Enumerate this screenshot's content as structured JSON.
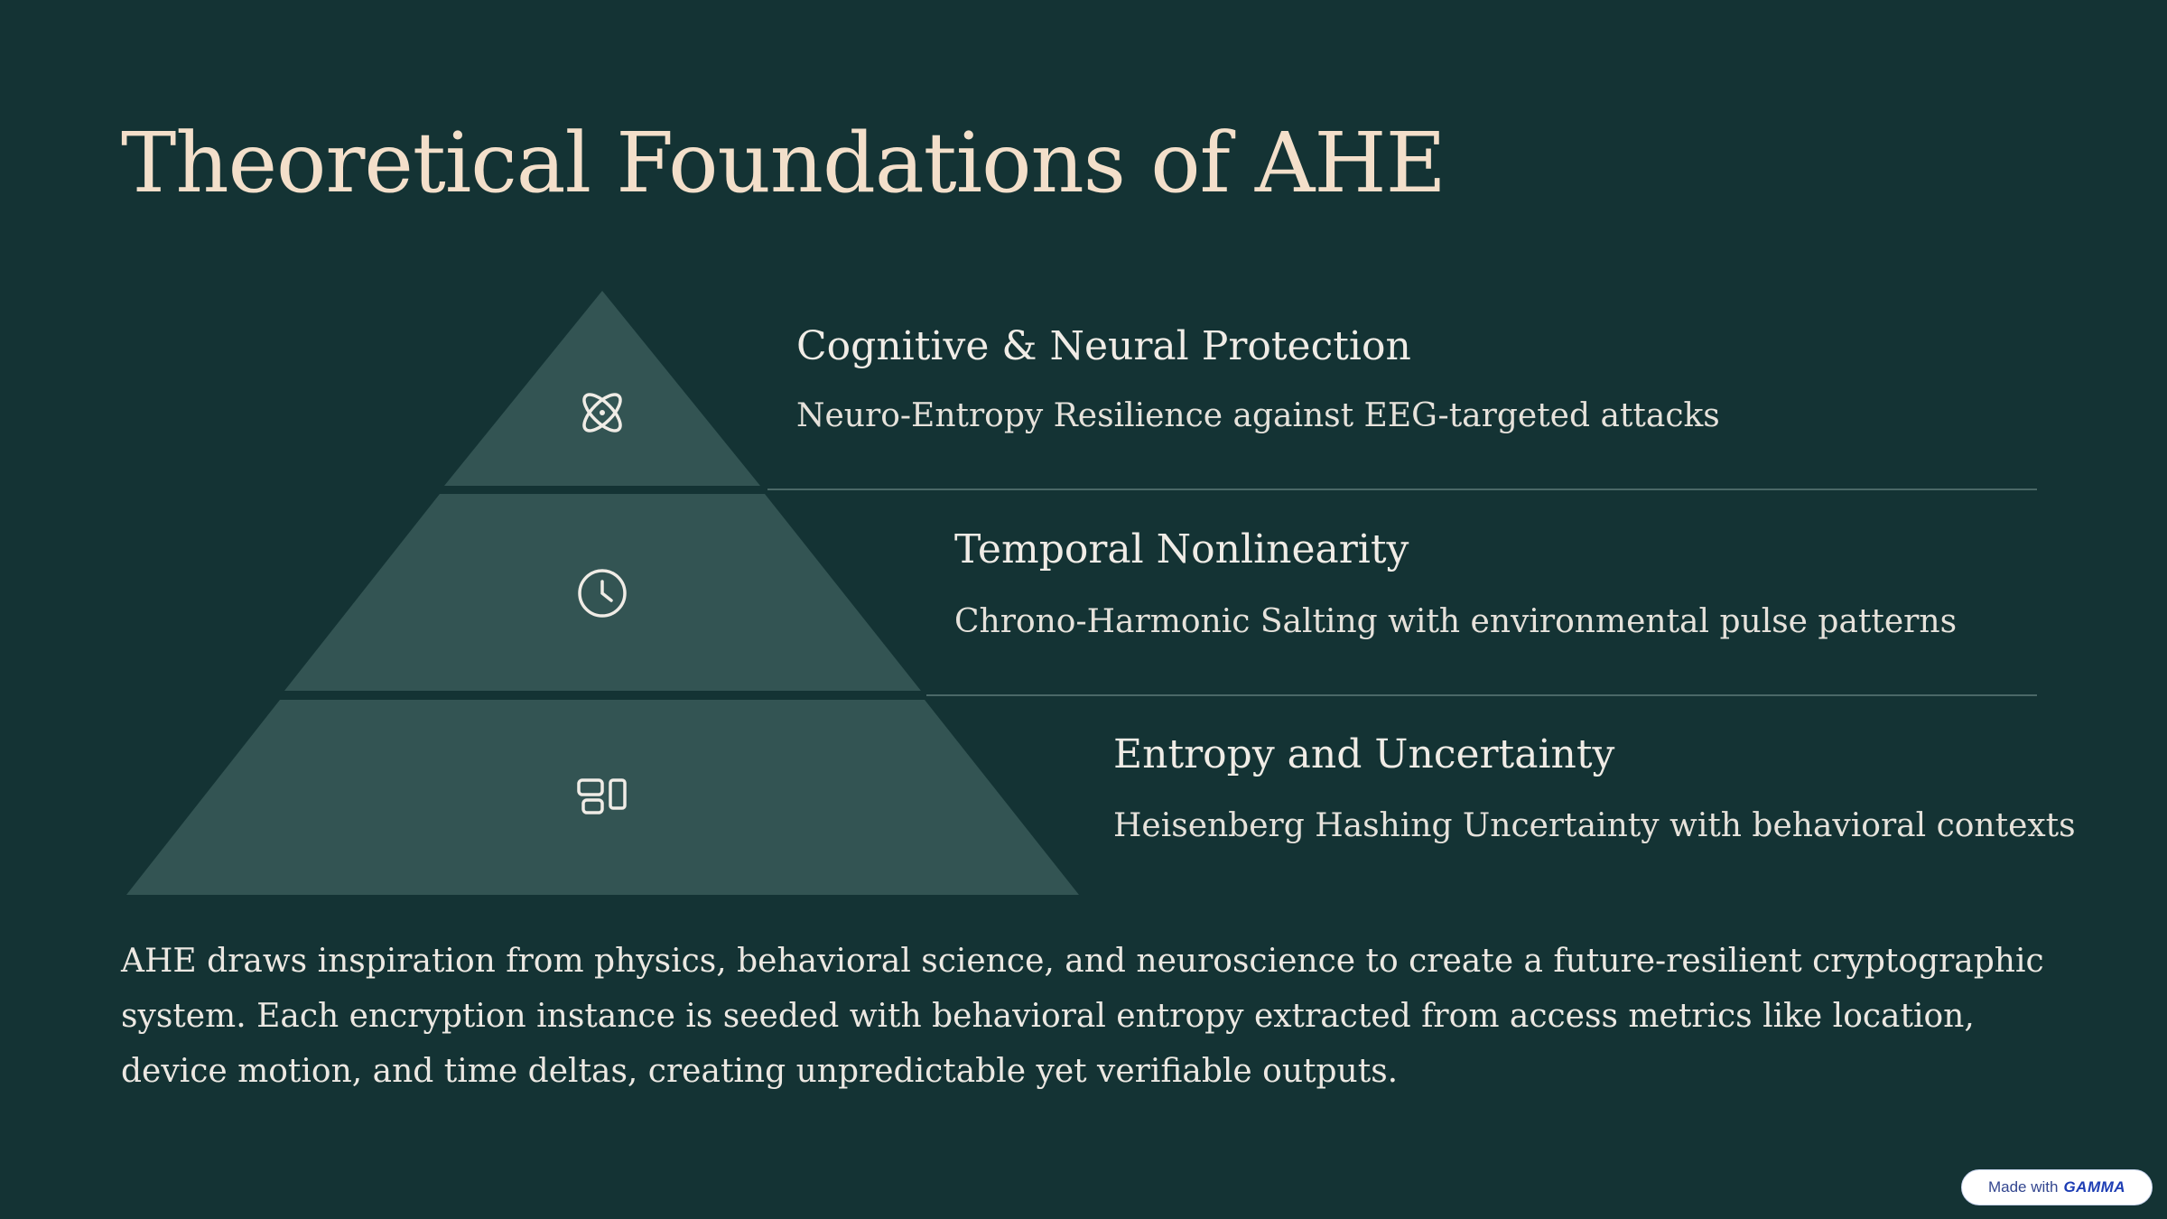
{
  "title": "Theoretical Foundations of AHE",
  "tiers": [
    {
      "icon": "atom-icon",
      "heading": "Cognitive & Neural Protection",
      "description": "Neuro-Entropy Resilience against EEG-targeted attacks"
    },
    {
      "icon": "clock-icon",
      "heading": "Temporal Nonlinearity",
      "description": "Chrono-Harmonic Salting with environmental pulse patterns"
    },
    {
      "icon": "devices-icon",
      "heading": "Entropy and Uncertainty",
      "description": "Heisenberg Hashing Uncertainty with behavioral contexts"
    }
  ],
  "body": "AHE draws inspiration from physics, behavioral science, and neuroscience to create a future-resilient cryptographic system. Each encryption instance is seeded with behavioral entropy extracted from access metrics like location, device motion, and time deltas, creating unpredictable yet verifiable outputs.",
  "badge": {
    "prefix": "Made with",
    "brand": "GAMMA"
  },
  "colors": {
    "background": "#143334",
    "pyramid": "#335453",
    "title": "#f3dfca",
    "divider": "#4b6867"
  }
}
